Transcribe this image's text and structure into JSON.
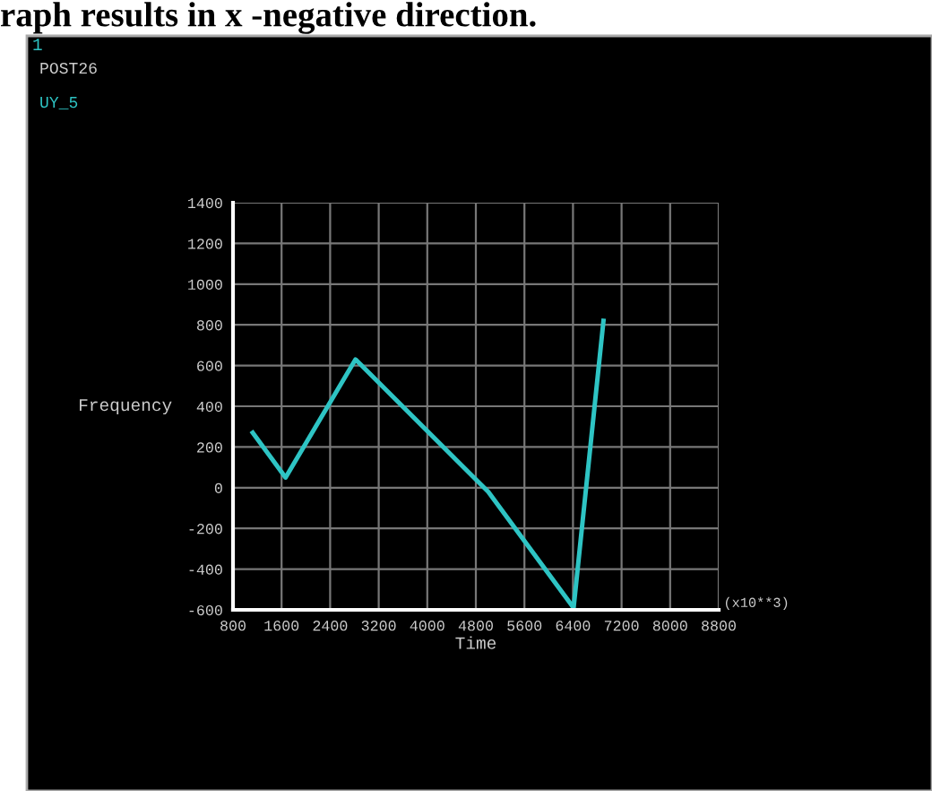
{
  "chart_data": {
    "type": "line",
    "title": "1",
    "subtitle": "POST26",
    "xlabel": "Time",
    "ylabel": "Frequency",
    "annotations": [
      "raph results in x -negative direction.",
      "(x10**3)"
    ],
    "x": [
      1125,
      1666,
      2818,
      5003,
      6410,
      6902
    ],
    "series": [
      {
        "name": "UY_5",
        "color": "#2ec4c4",
        "values": [
          270,
          50,
          630,
          -20,
          -590,
          820
        ]
      }
    ],
    "xlim": [
      800,
      8800
    ],
    "xticks": [
      800,
      1600,
      2400,
      3200,
      4000,
      4800,
      5600,
      6400,
      7200,
      8000,
      8800
    ],
    "ylim": [
      -600,
      1400
    ],
    "yticks": [
      -600,
      -400,
      -200,
      0,
      200,
      400,
      600,
      800,
      1000,
      1200,
      1400
    ],
    "grid": true,
    "marker": "none",
    "line_style": "solid"
  }
}
